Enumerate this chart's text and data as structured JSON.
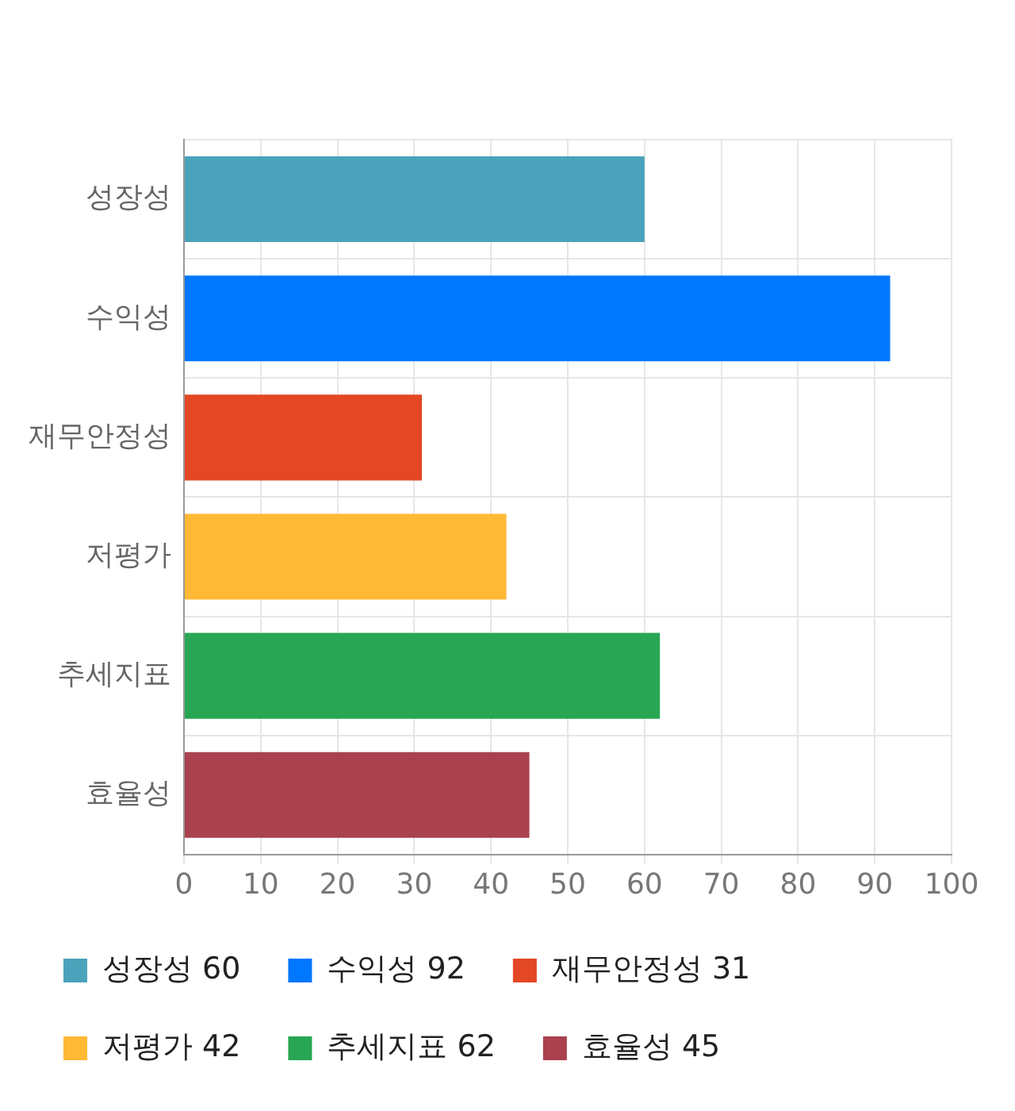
{
  "chart_data": {
    "type": "bar",
    "orientation": "horizontal",
    "categories": [
      "성장성",
      "수익성",
      "재무안정성",
      "저평가",
      "추세지표",
      "효율성"
    ],
    "series": [
      {
        "name": "성장성 60",
        "color": "#4aa3ba",
        "values": [
          60,
          null,
          null,
          null,
          null,
          null
        ]
      },
      {
        "name": "수익성 92",
        "color": "#0077ff",
        "values": [
          null,
          92,
          null,
          null,
          null,
          null
        ]
      },
      {
        "name": "재무안정성 31",
        "color": "#e34724",
        "values": [
          null,
          null,
          31,
          null,
          null,
          null
        ]
      },
      {
        "name": "저평가 42",
        "color": "#ffb935",
        "values": [
          null,
          null,
          null,
          42,
          null,
          null
        ]
      },
      {
        "name": "추세지표 62",
        "color": "#28a653",
        "values": [
          null,
          null,
          null,
          null,
          62,
          null
        ]
      },
      {
        "name": "효율성 45",
        "color": "#a9414e",
        "values": [
          null,
          null,
          null,
          null,
          null,
          45
        ]
      }
    ],
    "xlim": [
      0,
      100
    ],
    "xticks": [
      0,
      10,
      20,
      30,
      40,
      50,
      60,
      70,
      80,
      90,
      100
    ],
    "grid": true,
    "legend": "bottom"
  }
}
